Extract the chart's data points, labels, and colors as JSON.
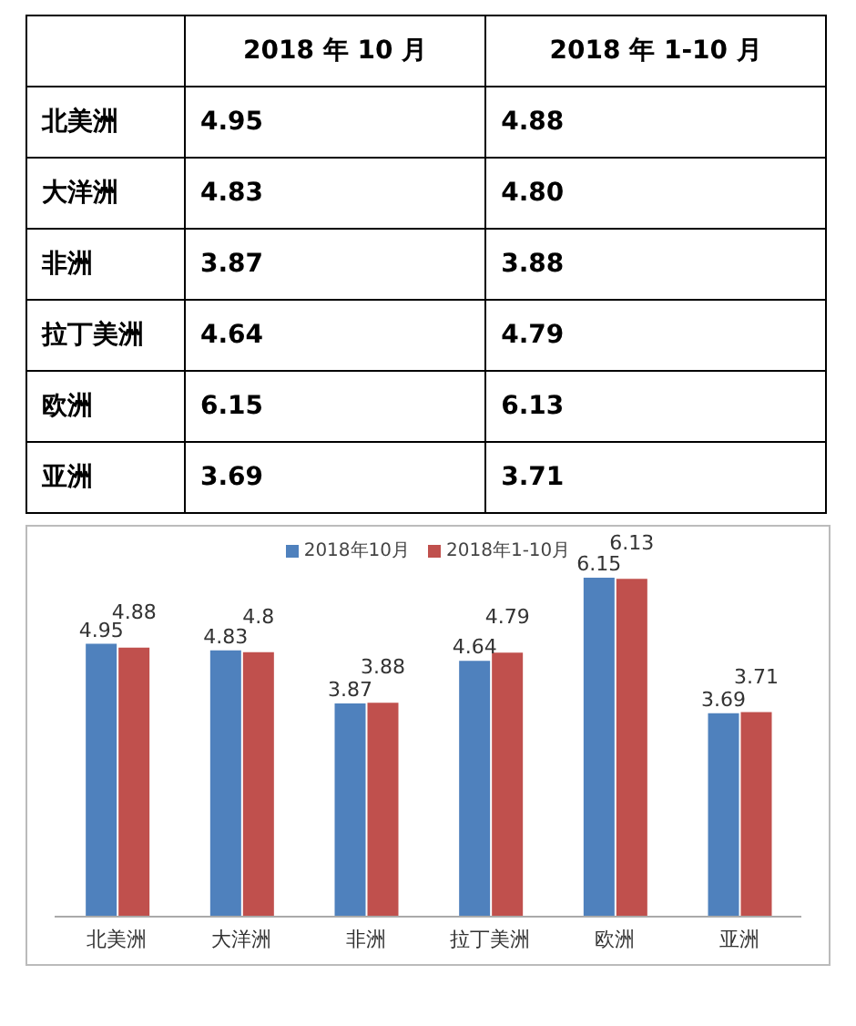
{
  "chart_data": [
    {
      "type": "heatmap",
      "categories": [
        "2018 年 10 月",
        "2018 年 1-10 月"
      ],
      "y_categories": [
        "北美洲",
        "大洋洲",
        "非洲",
        "拉丁美洲",
        "欧洲",
        "亚洲"
      ],
      "cells": [
        [
          4.95,
          4.88
        ],
        [
          4.83,
          4.8
        ],
        [
          3.87,
          3.88
        ],
        [
          4.64,
          4.79
        ],
        [
          6.15,
          6.13
        ],
        [
          3.69,
          3.71
        ]
      ],
      "cell_labels": [
        [
          "4.95",
          "4.88"
        ],
        [
          "4.83",
          "4.80"
        ],
        [
          "3.87",
          "3.88"
        ],
        [
          "4.64",
          "4.79"
        ],
        [
          "6.15",
          "6.13"
        ],
        [
          "3.69",
          "3.71"
        ]
      ]
    },
    {
      "type": "bar",
      "categories": [
        "北美洲",
        "大洋洲",
        "非洲",
        "拉丁美洲",
        "欧洲",
        "亚洲"
      ],
      "series": [
        {
          "name": "2018年10月",
          "color": "#4f81bd",
          "values": [
            4.95,
            4.83,
            3.87,
            4.64,
            6.15,
            3.69
          ]
        },
        {
          "name": "2018年1-10月",
          "color": "#c0504d",
          "values": [
            4.88,
            4.8,
            3.88,
            4.79,
            6.13,
            3.71
          ]
        }
      ],
      "data_labels": true,
      "legend": "top",
      "grid": false
    }
  ]
}
